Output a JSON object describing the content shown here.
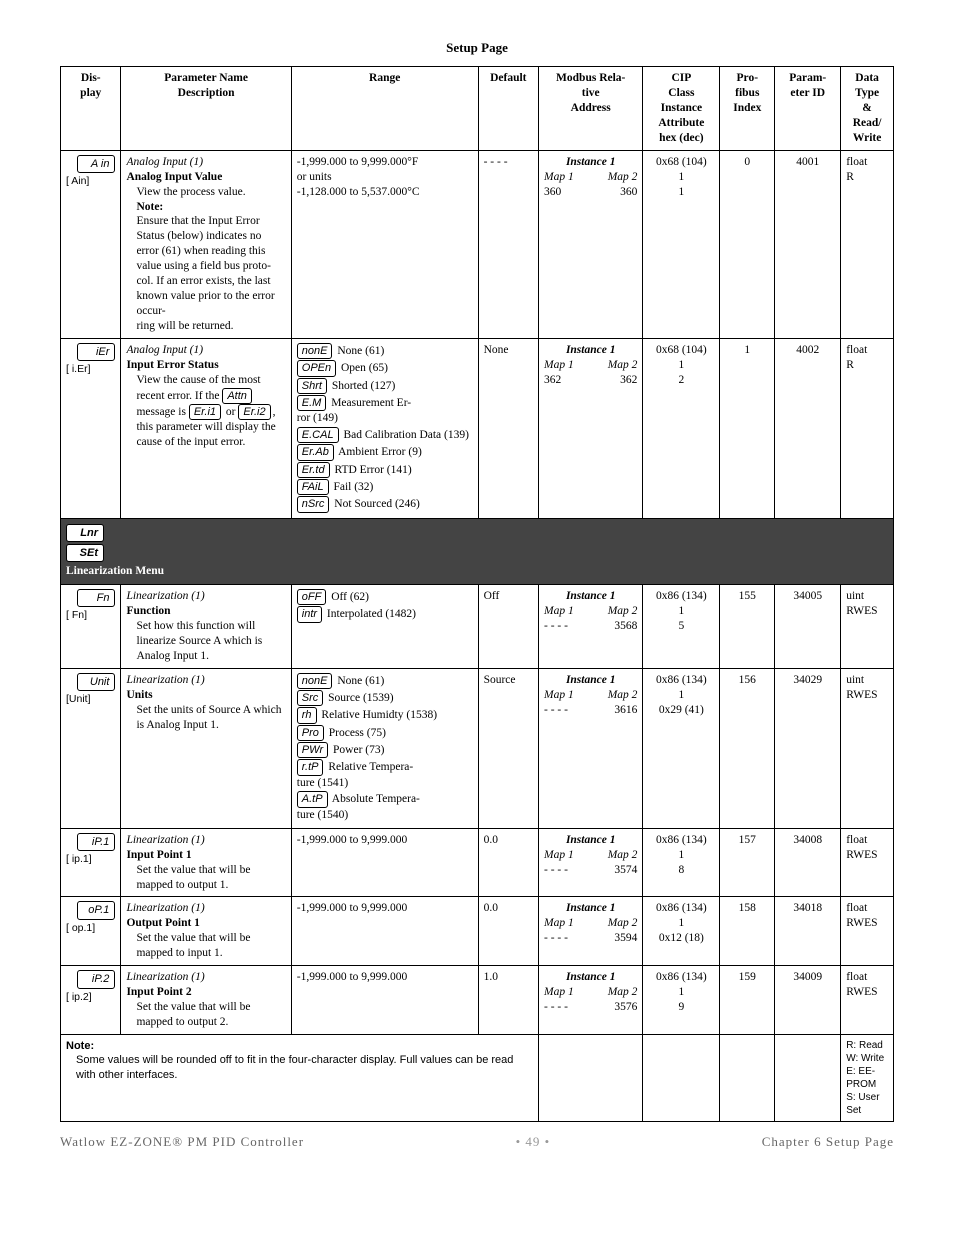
{
  "page_title": "Setup Page",
  "headers": {
    "display": "Dis-\nplay",
    "param": "Parameter Name\nDescription",
    "range": "Range",
    "default": "Default",
    "modbus": "Modbus Rela-\ntive\nAddress",
    "cip": "CIP\nClass\nInstance\nAttribute\nhex (dec)",
    "profibus": "Pro-\nfibus\nIndex",
    "paramid": "Param-\neter ID",
    "dtype": "Data\nType\n&\nRead/\nWrite"
  },
  "rows": [
    {
      "disp_seg": "A in",
      "disp_label": "[ Ain]",
      "param_title": "Analog Input (1)",
      "param_name": "Analog Input Value",
      "param_desc": "View the process value.",
      "note_label": "Note:",
      "note_text": "Ensure that the Input Error Status (below) indicates no error (61) when reading this value using a field bus proto-\ncol. If an error exists, the last known value prior to the error occur-\nring will be returned.",
      "range": [
        "-1,999.000 to 9,999.000°F",
        "or units",
        "-1,128.000 to 5,537.000°C"
      ],
      "default": "- - - -",
      "instance": "Instance 1",
      "map1": "Map 1",
      "map2": "Map 2",
      "mval1": "360",
      "mval2": "360",
      "cip": [
        "0x68 (104)",
        "1",
        "1"
      ],
      "profibus": "0",
      "paramid": "4001",
      "dtype": [
        "float",
        "R"
      ]
    },
    {
      "disp_seg": "iEr",
      "disp_label": "[ i.Er]",
      "param_title": "Analog Input (1)",
      "param_name": "Input Error Status",
      "param_desc_html": "View the cause of the most recent error. If the <span class='seg'>Attn</span> message is <span class='seg'>Er.i1</span> or <span class='seg'>Er.i2</span>, this parameter will display the cause of the input error.",
      "range_items": [
        {
          "seg": "nonE",
          "txt": "None (61)"
        },
        {
          "seg": "OPEn",
          "txt": "Open (65)"
        },
        {
          "seg": "Shrt",
          "txt": "Shorted (127)"
        },
        {
          "seg": "E.M",
          "txt": "Measurement Er-\nror (149)"
        },
        {
          "seg": "E.CAL",
          "txt": "Bad Calibration Data (139)"
        },
        {
          "seg": "Er.Ab",
          "txt": "Ambient Error (9)"
        },
        {
          "seg": "Er.td",
          "txt": "RTD Error (141)"
        },
        {
          "seg": "FAiL",
          "txt": "Fail (32)"
        },
        {
          "seg": "nSrc",
          "txt": "Not Sourced (246)"
        }
      ],
      "default": "None",
      "instance": "Instance 1",
      "map1": "Map 1",
      "map2": "Map 2",
      "mval1": "362",
      "mval2": "362",
      "cip": [
        "0x68 (104)",
        "1",
        "2"
      ],
      "profibus": "1",
      "paramid": "4002",
      "dtype": [
        "float",
        "R"
      ]
    }
  ],
  "menu": {
    "seg1": "Lnr",
    "seg2": "SEt",
    "label": "Linearization Menu"
  },
  "rows2": [
    {
      "disp_seg": "Fn",
      "disp_label": "[  Fn]",
      "param_title": "Linearization (1)",
      "param_name": "Function",
      "param_desc": "Set how this function will linearize Source A which is Analog Input 1.",
      "range_items": [
        {
          "seg": "oFF",
          "txt": "Off (62)"
        },
        {
          "seg": "intr",
          "txt": "Interpolated (1482)"
        }
      ],
      "default": "Off",
      "instance": "Instance 1",
      "map1": "Map 1",
      "map2": "Map 2",
      "mval1": "- - - -",
      "mval2": "3568",
      "cip": [
        "0x86 (134)",
        "1",
        "5"
      ],
      "profibus": "155",
      "paramid": "34005",
      "dtype": [
        "uint",
        "RWES"
      ]
    },
    {
      "disp_seg": "Unit",
      "disp_label": "[Unit]",
      "param_title": "Linearization (1)",
      "param_name": "Units",
      "param_desc": "Set the units of Source A which is Analog Input 1.",
      "range_items": [
        {
          "seg": "nonE",
          "txt": "None (61)"
        },
        {
          "seg": "Src",
          "txt": "Source (1539)"
        },
        {
          "seg": "rh",
          "txt": "Relative Humidty (1538)"
        },
        {
          "seg": "Pro",
          "txt": "Process (75)"
        },
        {
          "seg": "PWr",
          "txt": "Power (73)"
        },
        {
          "seg": "r.tP",
          "txt": "Relative Tempera-\nture (1541)"
        },
        {
          "seg": "A.tP",
          "txt": "Absolute Tempera-\nture (1540)"
        }
      ],
      "default": "Source",
      "instance": "Instance 1",
      "map1": "Map 1",
      "map2": "Map 2",
      "mval1": "- - - -",
      "mval2": "3616",
      "cip": [
        "0x86 (134)",
        "1",
        "0x29 (41)"
      ],
      "profibus": "156",
      "paramid": "34029",
      "dtype": [
        "uint",
        "RWES"
      ]
    },
    {
      "disp_seg": "iP.1",
      "disp_label": "[ ip.1]",
      "param_title": "Linearization (1)",
      "param_name": "Input Point 1",
      "param_desc": "Set the value that will be mapped to output 1.",
      "range": [
        "-1,999.000 to 9,999.000"
      ],
      "default": "0.0",
      "instance": "Instance 1",
      "map1": "Map 1",
      "map2": "Map 2",
      "mval1": "- - - -",
      "mval2": "3574",
      "cip": [
        "0x86 (134)",
        "1",
        "8"
      ],
      "profibus": "157",
      "paramid": "34008",
      "dtype": [
        "float",
        "RWES"
      ]
    },
    {
      "disp_seg": "oP.1",
      "disp_label": "[ op.1]",
      "param_title": "Linearization (1)",
      "param_name": "Output Point 1",
      "param_desc": "Set the value that will be mapped to input 1.",
      "range": [
        "-1,999.000 to 9,999.000"
      ],
      "default": "0.0",
      "instance": "Instance 1",
      "map1": "Map 1",
      "map2": "Map 2",
      "mval1": "- - - -",
      "mval2": "3594",
      "cip": [
        "0x86 (134)",
        "1",
        "0x12 (18)"
      ],
      "profibus": "158",
      "paramid": "34018",
      "dtype": [
        "float",
        "RWES"
      ]
    },
    {
      "disp_seg": "iP.2",
      "disp_label": "[ ip.2]",
      "param_title": "Linearization (1)",
      "param_name": "Input Point 2",
      "param_desc": "Set the value that will be mapped to output 2.",
      "range": [
        "-1,999.000 to 9,999.000"
      ],
      "default": "1.0",
      "instance": "Instance 1",
      "map1": "Map 1",
      "map2": "Map 2",
      "mval1": "- - - -",
      "mval2": "3576",
      "cip": [
        "0x86 (134)",
        "1",
        "9"
      ],
      "profibus": "159",
      "paramid": "34009",
      "dtype": [
        "float",
        "RWES"
      ]
    }
  ],
  "note": {
    "label": "Note:",
    "text": "Some values will be rounded off to fit in the four-character display. Full values can be read with other interfaces."
  },
  "legend": [
    "R: Read",
    "W: Write",
    "E: EE-\nPROM",
    "S: User Set"
  ],
  "footer": {
    "left": "Watlow EZ-ZONE® PM PID Controller",
    "center": "• 49 •",
    "right": "Chapter 6 Setup Page"
  }
}
